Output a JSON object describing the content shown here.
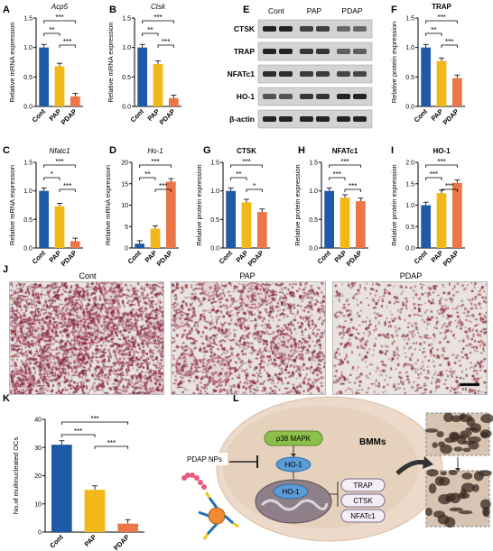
{
  "panels": {
    "A": "A",
    "B": "B",
    "C": "C",
    "D": "D",
    "E": "E",
    "F": "F",
    "G": "G",
    "H": "H",
    "I": "I",
    "J": "J",
    "K": "K",
    "L": "L"
  },
  "groups": [
    "Cont",
    "PAP",
    "PDAP"
  ],
  "colors": {
    "cont": "#1f5aa6",
    "pap": "#f2b718",
    "pdap": "#eb7746"
  },
  "sig": {
    "s2": "**",
    "s3": "***",
    "s1": "*"
  },
  "ylabels": {
    "mrna": "Relative mRNA expression",
    "protein": "Relative protein expression",
    "ocs": "No.of multinucleated OCs"
  },
  "chart_data": [
    {
      "panel": "A",
      "type": "bar",
      "title": "Acp5",
      "categories": [
        "Cont",
        "PAP",
        "PDAP"
      ],
      "values": [
        1.0,
        0.68,
        0.17
      ],
      "ylim": [
        0,
        1.5
      ],
      "yticks": [
        "0.0",
        "0.5",
        "1.0",
        "1.5"
      ],
      "ylabel": "Relative mRNA expression",
      "sig": [
        [
          "Cont",
          "PAP",
          "**"
        ],
        [
          "PAP",
          "PDAP",
          "***"
        ],
        [
          "Cont",
          "PDAP",
          "***"
        ]
      ]
    },
    {
      "panel": "B",
      "type": "bar",
      "title": "Ctsk",
      "categories": [
        "Cont",
        "PAP",
        "PDAP"
      ],
      "values": [
        1.0,
        0.72,
        0.14
      ],
      "ylim": [
        0,
        1.5
      ],
      "yticks": [
        "0.0",
        "0.5",
        "1.0",
        "1.5"
      ],
      "ylabel": "Relative mRNA expression",
      "sig": [
        [
          "Cont",
          "PAP",
          "**"
        ],
        [
          "PAP",
          "PDAP",
          "***"
        ],
        [
          "Cont",
          "PDAP",
          "***"
        ]
      ]
    },
    {
      "panel": "F",
      "type": "bar",
      "title": "TRAP",
      "categories": [
        "Cont",
        "PAP",
        "PDAP"
      ],
      "values": [
        1.0,
        0.77,
        0.48
      ],
      "ylim": [
        0,
        1.5
      ],
      "yticks": [
        "0.0",
        "0.5",
        "1.0",
        "1.5"
      ],
      "ylabel": "Relative protein expression",
      "sig": [
        [
          "Cont",
          "PAP",
          "**"
        ],
        [
          "PAP",
          "PDAP",
          "***"
        ],
        [
          "Cont",
          "PDAP",
          "***"
        ]
      ]
    },
    {
      "panel": "C",
      "type": "bar",
      "title": "Nfatc1",
      "categories": [
        "Cont",
        "PAP",
        "PDAP"
      ],
      "values": [
        1.0,
        0.73,
        0.12
      ],
      "ylim": [
        0,
        1.5
      ],
      "yticks": [
        "0.0",
        "0.5",
        "1.0",
        "1.5"
      ],
      "ylabel": "Relative mRNA expression",
      "sig": [
        [
          "Cont",
          "PAP",
          "*"
        ],
        [
          "PAP",
          "PDAP",
          "***"
        ],
        [
          "Cont",
          "PDAP",
          "***"
        ]
      ]
    },
    {
      "panel": "D",
      "type": "bar",
      "title": "Ho-1",
      "categories": [
        "Cont",
        "PAP",
        "PDAP"
      ],
      "values": [
        1.0,
        4.5,
        15.5
      ],
      "ylim": [
        0,
        20
      ],
      "yticks": [
        "0",
        "5",
        "10",
        "15",
        "20"
      ],
      "ylabel": "Relative mRNA expression",
      "sig": [
        [
          "Cont",
          "PAP",
          "**"
        ],
        [
          "PAP",
          "PDAP",
          "***"
        ],
        [
          "Cont",
          "PDAP",
          "***"
        ]
      ]
    },
    {
      "panel": "G",
      "type": "bar",
      "title": "CTSK",
      "categories": [
        "Cont",
        "PAP",
        "PDAP"
      ],
      "values": [
        1.0,
        0.8,
        0.63
      ],
      "ylim": [
        0,
        1.5
      ],
      "yticks": [
        "0.0",
        "0.5",
        "1.0",
        "1.5"
      ],
      "ylabel": "Relative protein expression",
      "sig": [
        [
          "Cont",
          "PAP",
          "**"
        ],
        [
          "PAP",
          "PDAP",
          "*"
        ],
        [
          "Cont",
          "PDAP",
          "***"
        ]
      ]
    },
    {
      "panel": "H",
      "type": "bar",
      "title": "NFATc1",
      "categories": [
        "Cont",
        "PAP",
        "PDAP"
      ],
      "values": [
        1.0,
        0.88,
        0.82
      ],
      "ylim": [
        0,
        1.5
      ],
      "yticks": [
        "0.0",
        "0.5",
        "1.0",
        "1.5"
      ],
      "ylabel": "Relative protein expression",
      "sig": [
        [
          "Cont",
          "PAP",
          "***"
        ],
        [
          "PAP",
          "PDAP",
          "***"
        ],
        [
          "Cont",
          "PDAP",
          "***"
        ]
      ]
    },
    {
      "panel": "I",
      "type": "bar",
      "title": "HO-1",
      "categories": [
        "Cont",
        "PAP",
        "PDAP"
      ],
      "values": [
        1.0,
        1.28,
        1.52
      ],
      "ylim": [
        0,
        2.0
      ],
      "yticks": [
        "0.0",
        "0.5",
        "1.0",
        "1.5",
        "2.0"
      ],
      "ylabel": "Relative protein expression",
      "sig": [
        [
          "Cont",
          "PAP",
          "***"
        ],
        [
          "PAP",
          "PDAP",
          "***"
        ],
        [
          "Cont",
          "PDAP",
          "***"
        ]
      ]
    },
    {
      "panel": "K",
      "type": "bar",
      "title": "",
      "categories": [
        "Cont",
        "PAP",
        "PDAP"
      ],
      "values": [
        31,
        15,
        3
      ],
      "ylim": [
        0,
        40
      ],
      "yticks": [
        "0",
        "10",
        "20",
        "30",
        "40"
      ],
      "ylabel": "No.of multinucleated OCs",
      "sig": [
        [
          "Cont",
          "PAP",
          "***"
        ],
        [
          "PAP",
          "PDAP",
          "***"
        ],
        [
          "Cont",
          "PDAP",
          "***"
        ]
      ]
    }
  ],
  "western": {
    "headers": [
      "Cont",
      "PAP",
      "PDAP"
    ],
    "rows": [
      "CTSK",
      "TRAP",
      "NFATc1",
      "HO-1",
      "β-actin"
    ]
  },
  "stain_titles": [
    "Cont",
    "PAP",
    "PDAP"
  ],
  "schematic": {
    "cell": "BMMs",
    "p38": "p38 MAPK",
    "ho1_a": "HO-1",
    "ho1_b": "HO-1",
    "np": "PDAP NPs",
    "targets": [
      "TRAP",
      "CTSK",
      "NFATc1"
    ]
  }
}
